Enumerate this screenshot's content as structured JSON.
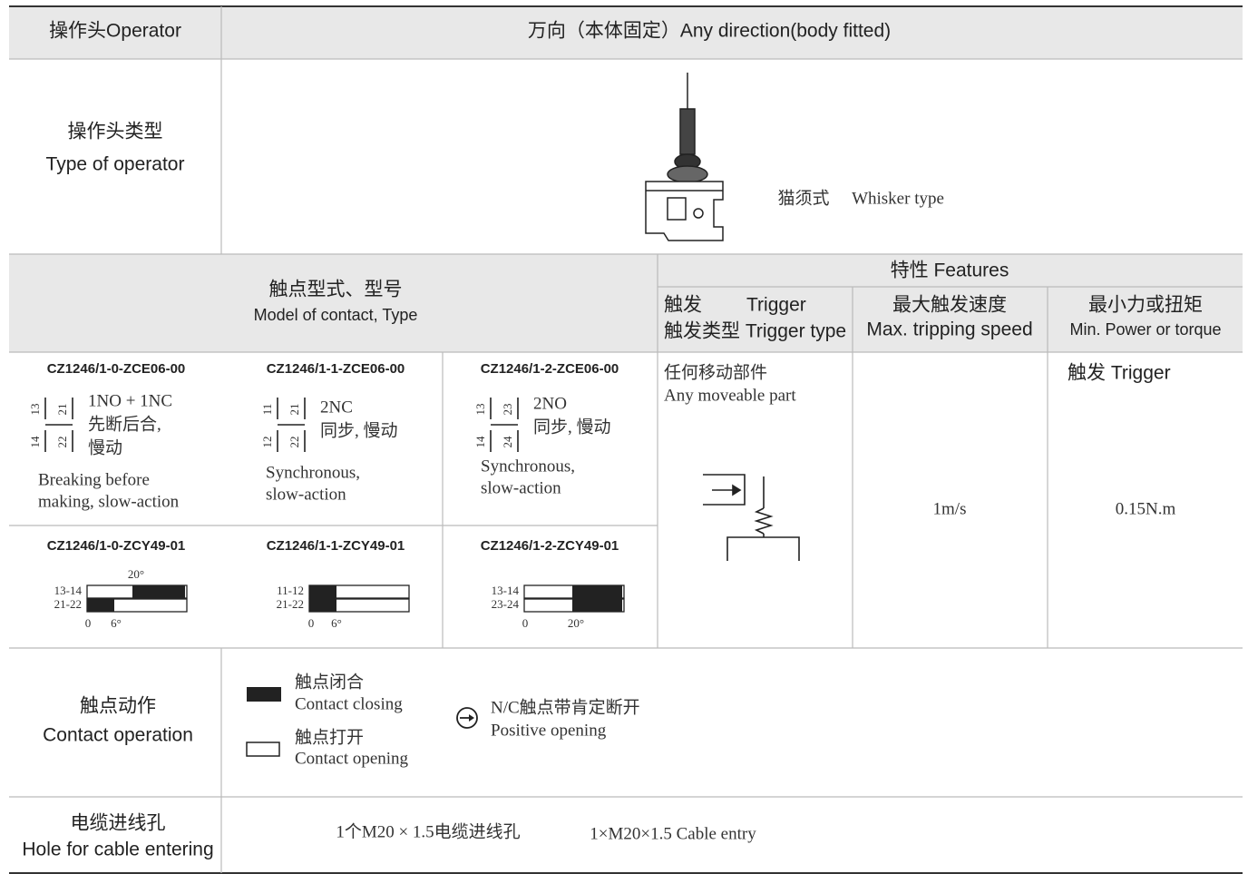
{
  "header": {
    "label": "操作头Operator",
    "value": "万向（本体固定）Any direction(body fitted)"
  },
  "operator_type": {
    "label_cn": "操作头类型",
    "label_en": "Type of operator",
    "caption_cn": "猫须式",
    "caption_en": "Whisker type"
  },
  "contact": {
    "title_cn": "触点型式、型号",
    "title_en": "Model of contact, Type",
    "models": [
      {
        "code": "CZ1246/1-0-ZCE06-00",
        "terminals": [
          "13",
          "14",
          "21",
          "22"
        ],
        "desc_cn": [
          "1NO + 1NC",
          "先断后合,",
          "慢动"
        ],
        "desc_en": [
          "Breaking before",
          "making, slow-action"
        ],
        "timing": {
          "code": "CZ1246/1-0-ZCY49-01",
          "rows": [
            "13-14",
            "21-22"
          ],
          "top": "20°",
          "axis": [
            "0",
            "6°"
          ]
        }
      },
      {
        "code": "CZ1246/1-1-ZCE06-00",
        "terminals": [
          "11",
          "12",
          "21",
          "22"
        ],
        "desc_cn": [
          "2NC",
          "同步,  慢动"
        ],
        "desc_en": [
          "Synchronous,",
          "slow-action"
        ],
        "timing": {
          "code": "CZ1246/1-1-ZCY49-01",
          "rows": [
            "11-12",
            "21-22"
          ],
          "axis": [
            "0",
            "6°"
          ]
        }
      },
      {
        "code": "CZ1246/1-2-ZCE06-00",
        "terminals": [
          "13",
          "14",
          "23",
          "24"
        ],
        "desc_cn": [
          "2NO",
          "同步,  慢动"
        ],
        "desc_en": [
          "Synchronous,",
          "slow-action"
        ],
        "timing": {
          "code": "CZ1246/1-2-ZCY49-01",
          "rows": [
            "13-14",
            "23-24"
          ],
          "axis": [
            "0",
            "20°"
          ]
        }
      }
    ]
  },
  "features": {
    "title": "特性 Features",
    "trigger_head_cn": "触发",
    "trigger_head_en": "Trigger",
    "trigger_type": "触发类型 Trigger type",
    "speed_head_cn": "最大触发速度",
    "speed_head_en": "Max. tripping speed",
    "force_head_cn": "最小力或扭矩",
    "force_head_en": "Min. Power or torque",
    "trigger_cn": "任何移动部件",
    "trigger_en": "Any moveable part",
    "speed": "1m/s",
    "force_label": "触发 Trigger",
    "force": "0.15N.m"
  },
  "legend": {
    "label_cn": "触点动作",
    "label_en": "Contact operation",
    "closing_cn": "触点闭合",
    "closing_en": "Contact closing",
    "opening_cn": "触点打开",
    "opening_en": "Contact opening",
    "positive_cn": "N/C触点带肯定断开",
    "positive_en": "Positive opening"
  },
  "cable": {
    "label_cn": "电缆进线孔",
    "label_en": "Hole for cable entering",
    "value_cn": "1个M20 × 1.5电缆进线孔",
    "value_en": "1×M20×1.5 Cable entry"
  }
}
